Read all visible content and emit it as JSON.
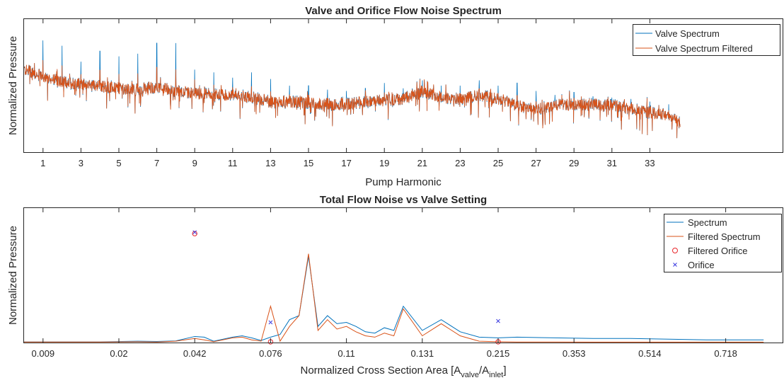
{
  "colors": {
    "spectrum": "#0072BD",
    "filtered": "#D95319",
    "filtered_orifice": "#E8262B",
    "orifice": "#3B3BE0",
    "axes": "#262626"
  },
  "chart_data": [
    {
      "type": "line",
      "title": "Valve and Orifice Flow Noise Spectrum",
      "xlabel": "Pump Harmonic",
      "ylabel": "Normalized Pressure",
      "xlim": [
        0,
        40
      ],
      "ylim": [
        0,
        1
      ],
      "xticks": [
        1,
        3,
        5,
        7,
        9,
        11,
        13,
        15,
        17,
        19,
        21,
        23,
        25,
        27,
        29,
        31,
        33
      ],
      "xticklabels": [
        "1",
        "3",
        "5",
        "7",
        "9",
        "11",
        "13",
        "15",
        "17",
        "19",
        "21",
        "23",
        "25",
        "27",
        "29",
        "31",
        "33"
      ],
      "data_extent": [
        0,
        34.6
      ],
      "baseline_trend": [
        [
          0,
          0.62
        ],
        [
          1,
          0.57
        ],
        [
          2,
          0.53
        ],
        [
          3,
          0.51
        ],
        [
          4,
          0.5
        ],
        [
          5,
          0.48
        ],
        [
          6,
          0.47
        ],
        [
          7,
          0.49
        ],
        [
          8,
          0.46
        ],
        [
          9,
          0.44
        ],
        [
          10,
          0.43
        ],
        [
          11,
          0.43
        ],
        [
          12,
          0.41
        ],
        [
          13,
          0.38
        ],
        [
          14,
          0.38
        ],
        [
          15,
          0.37
        ],
        [
          16,
          0.36
        ],
        [
          17,
          0.36
        ],
        [
          18,
          0.38
        ],
        [
          19,
          0.39
        ],
        [
          20,
          0.4
        ],
        [
          21,
          0.46
        ],
        [
          22,
          0.41
        ],
        [
          23,
          0.4
        ],
        [
          24,
          0.43
        ],
        [
          25,
          0.4
        ],
        [
          26,
          0.35
        ],
        [
          27,
          0.32
        ],
        [
          28,
          0.35
        ],
        [
          29,
          0.36
        ],
        [
          30,
          0.36
        ],
        [
          31,
          0.35
        ],
        [
          32,
          0.33
        ],
        [
          33,
          0.3
        ],
        [
          34,
          0.28
        ],
        [
          34.6,
          0.22
        ]
      ],
      "harmonic_peaks": [
        [
          1,
          0.84
        ],
        [
          2,
          0.8
        ],
        [
          3,
          0.68
        ],
        [
          4,
          0.76
        ],
        [
          5,
          0.72
        ],
        [
          6,
          0.74
        ],
        [
          7,
          0.82
        ],
        [
          8,
          0.82
        ],
        [
          9,
          0.62
        ],
        [
          10,
          0.6
        ],
        [
          11,
          0.56
        ],
        [
          12,
          0.6
        ],
        [
          13,
          0.55
        ],
        [
          14,
          0.5
        ],
        [
          15,
          0.5
        ],
        [
          16,
          0.47
        ],
        [
          17,
          0.46
        ],
        [
          18,
          0.48
        ],
        [
          19,
          0.52
        ],
        [
          20,
          0.48
        ],
        [
          21,
          0.54
        ],
        [
          22,
          0.5
        ],
        [
          23,
          0.5
        ],
        [
          24,
          0.54
        ],
        [
          25,
          0.5
        ],
        [
          26,
          0.52
        ],
        [
          27,
          0.46
        ],
        [
          28,
          0.43
        ],
        [
          29,
          0.45
        ],
        [
          30,
          0.42
        ],
        [
          31,
          0.41
        ],
        [
          32,
          0.4
        ],
        [
          33,
          0.38
        ],
        [
          34,
          0.36
        ]
      ],
      "series": [
        {
          "name": "Valve Spectrum"
        },
        {
          "name": "Valve Spectrum Filtered"
        }
      ],
      "legend_position": "top-right",
      "grid": false
    },
    {
      "type": "line",
      "title": "Total Flow Noise vs Valve Setting",
      "xlabel_text": "Normalized Cross Section Area [A",
      "xlabel_sub1": "valve",
      "xlabel_mid": "/A",
      "xlabel_sub2": "inlet",
      "xlabel_end": "]",
      "ylabel": "Normalized Pressure",
      "xlim": [
        0,
        40
      ],
      "ylim": [
        0,
        1
      ],
      "xticks": [
        1,
        5,
        9,
        13,
        17,
        21,
        25,
        29,
        33,
        37
      ],
      "xticklabels": [
        "0.009",
        "0.02",
        "0.042",
        "0.076",
        "0.11",
        "0.131",
        "0.215",
        "0.353",
        "0.514",
        "0.718"
      ],
      "series": [
        {
          "name": "Spectrum",
          "x": [
            0,
            2,
            4,
            6,
            7,
            8,
            9,
            9.5,
            10,
            11,
            11.5,
            12,
            12.5,
            13,
            13.5,
            14,
            14.5,
            15,
            15.5,
            16,
            16.5,
            17,
            17.5,
            18,
            18.5,
            19,
            19.5,
            20,
            21,
            22,
            23,
            24,
            25,
            26,
            28,
            30,
            32,
            34,
            36,
            38,
            39
          ],
          "y": [
            0.005,
            0.005,
            0.005,
            0.01,
            0.008,
            0.012,
            0.045,
            0.04,
            0.01,
            0.04,
            0.05,
            0.035,
            0.015,
            0.04,
            0.06,
            0.17,
            0.2,
            0.64,
            0.12,
            0.2,
            0.14,
            0.15,
            0.12,
            0.08,
            0.07,
            0.11,
            0.09,
            0.27,
            0.09,
            0.17,
            0.08,
            0.04,
            0.035,
            0.04,
            0.035,
            0.03,
            0.03,
            0.025,
            0.02,
            0.02,
            0.02
          ]
        },
        {
          "name": "Filtered Spectrum",
          "x": [
            0,
            2,
            4,
            6,
            7,
            8,
            9,
            9.5,
            10,
            11,
            11.5,
            12,
            12.5,
            13,
            13.5,
            14,
            14.5,
            15,
            15.5,
            16,
            16.5,
            17,
            17.5,
            18,
            18.5,
            19,
            19.5,
            20,
            21,
            22,
            23,
            24,
            25,
            26,
            28,
            30,
            32,
            34,
            36,
            38,
            39
          ],
          "y": [
            0.004,
            0.004,
            0.004,
            0.006,
            0.004,
            0.01,
            0.03,
            0.02,
            0.006,
            0.035,
            0.04,
            0.02,
            0.01,
            0.27,
            0.01,
            0.12,
            0.2,
            0.66,
            0.09,
            0.17,
            0.1,
            0.12,
            0.08,
            0.05,
            0.04,
            0.07,
            0.05,
            0.25,
            0.05,
            0.14,
            0.05,
            0.01,
            0.006,
            0.004,
            0.004,
            0.003,
            0.003,
            0.003,
            0.003,
            0.003,
            0.003
          ]
        },
        {
          "name": "Filtered Orifice",
          "marker": "o",
          "x": [
            9,
            13,
            25
          ],
          "y": [
            0.81,
            0.005,
            0.005
          ]
        },
        {
          "name": "Orifice",
          "marker": "x",
          "x": [
            9,
            13,
            25
          ],
          "y": [
            0.82,
            0.15,
            0.16
          ]
        }
      ],
      "legend_position": "top-right",
      "grid": false
    }
  ]
}
